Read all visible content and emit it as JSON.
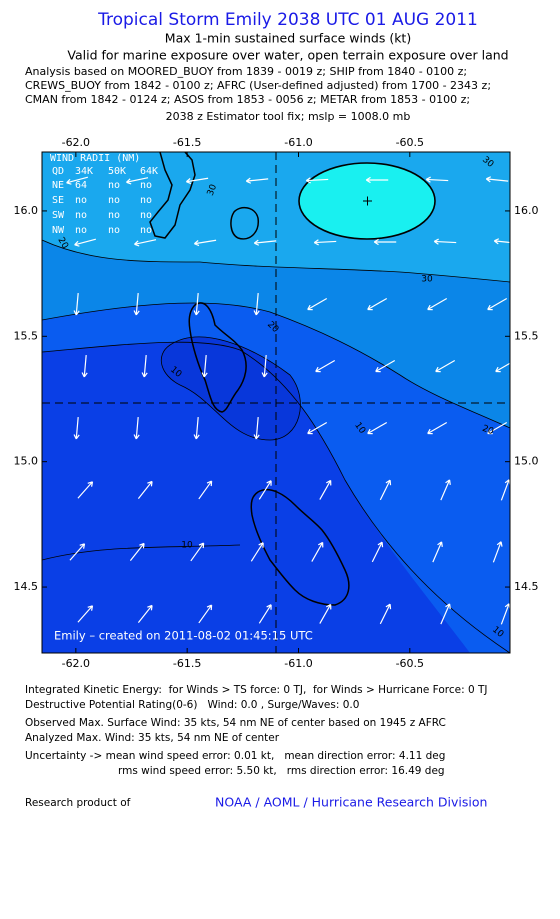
{
  "header": {
    "title": "Tropical Storm Emily 2038 UTC 01 AUG 2011",
    "subtitle": "Max 1-min sustained surface winds (kt)",
    "validity": "Valid for marine exposure over water, open terrain exposure over land",
    "analysis_lines": [
      "Analysis based on MOORED_BUOY from 1839 - 0019 z; SHIP from 1840 - 0100 z;",
      "CREWS_BUOY from 1842 - 0100 z; AFRC (User-defined adjusted) from 1700 - 2343 z;",
      "CMAN from 1842 - 0124 z; ASOS from 1853 - 0056 z; METAR from 1853 - 0100 z;"
    ],
    "estimator": "2038 z Estimator tool fix; mslp = 1008.0 mb"
  },
  "map": {
    "xlim": [
      -62.152,
      -60.05
    ],
    "ylim": [
      14.237,
      16.235
    ],
    "xticks": [
      {
        "value": -62,
        "label": "-62.0"
      },
      -61.5,
      {
        "value": -61,
        "label": "-61.0"
      },
      -60.5
    ],
    "yticks": [
      {
        "value": 16,
        "label": "16.0"
      },
      15.5,
      {
        "value": 15,
        "label": "15.0"
      },
      14.5
    ],
    "wind_radii": {
      "title": "WIND RADII (NM)",
      "header": [
        "QD",
        "34K",
        "50K",
        "64K"
      ],
      "rows": [
        [
          "NE",
          "64",
          "no",
          "no"
        ],
        [
          "SE",
          "no",
          "no",
          "no"
        ],
        [
          "SW",
          "no",
          "no",
          "no"
        ],
        [
          "NW",
          "no",
          "no",
          "no"
        ]
      ]
    },
    "contour_labels": [
      "30",
      "30",
      "30",
      "20",
      "20",
      "10",
      "10",
      "20",
      "10",
      "10"
    ],
    "credit": "Emily – created on 2011-08-02 01:45:15 UTC"
  },
  "footer": {
    "lines": [
      "Integrated Kinetic Energy:  for Winds > TS force: 0 TJ,  for Winds > Hurricane Force: 0 TJ",
      "Destructive Potential Rating(0-6)   Wind: 0.0 , Surge/Waves: 0.0",
      "Observed Max. Surface Wind: 35 kts, 54 nm NE of center based on 1945 z AFRC",
      "Analyzed Max. Wind: 35 kts, 54 nm NE of center",
      "Uncertainty -> mean wind speed error: 0.01 kt,   mean direction error: 4.11 deg",
      "rms wind speed error: 5.50 kt,   rms direction error: 16.49 deg"
    ],
    "research_label": "Research product of",
    "organization": "NOAA / AOML / Hurricane Research Division"
  }
}
